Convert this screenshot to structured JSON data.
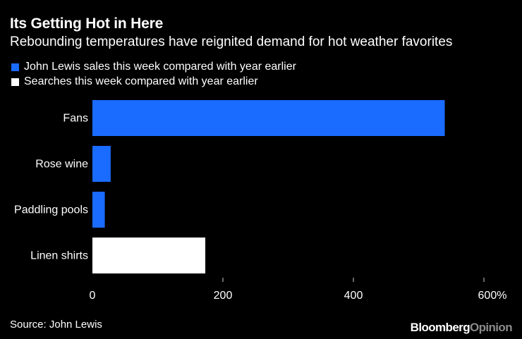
{
  "chart_data": {
    "type": "bar",
    "orientation": "horizontal",
    "title": "Its Getting Hot in Here",
    "subtitle": "Rebounding temperatures have reignited demand for hot weather favorites",
    "categories": [
      "Fans",
      "Rose wine",
      "Paddling pools",
      "Linen shirts"
    ],
    "series": [
      {
        "name": "John Lewis sales this week compared with year earlier",
        "color": "#1a6bff",
        "values": [
          540,
          28,
          19,
          null
        ]
      },
      {
        "name": "Searches this week compared with year earlier",
        "color": "#ffffff",
        "values": [
          null,
          null,
          null,
          173
        ]
      }
    ],
    "xlim": [
      0,
      600
    ],
    "x_ticks": [
      0,
      200,
      400,
      600
    ],
    "x_tick_labels": [
      "0",
      "200",
      "400",
      "600%"
    ],
    "legend_position": "top-left",
    "grid": false
  },
  "footer": {
    "source": "Source: John Lewis",
    "brand_part1": "Bloomberg",
    "brand_part2": "Opinion"
  }
}
